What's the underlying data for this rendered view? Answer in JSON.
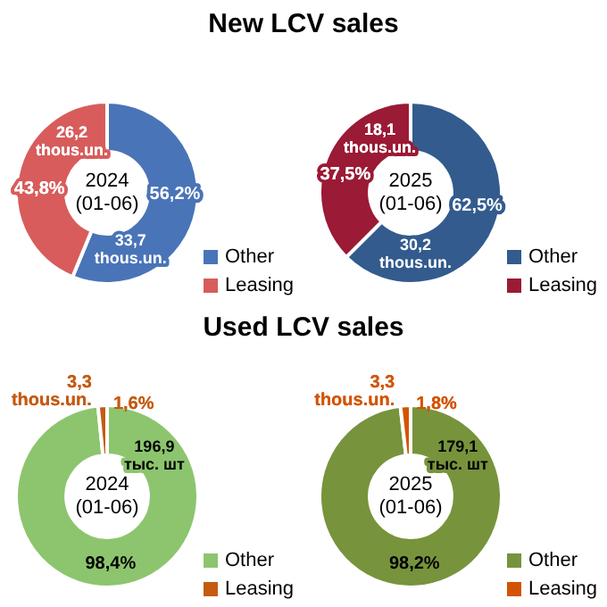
{
  "chart_data": [
    {
      "type": "donut",
      "title": "New LCV sales",
      "categories": [
        "Other",
        "Leasing"
      ],
      "values": [
        56.2,
        43.8
      ],
      "colors": [
        "#4a74b8",
        "#d85c5c"
      ],
      "value_labels": [
        "56,2%",
        "43,8%"
      ],
      "legend": "bottom right",
      "annotations": [
        "2024 (01-06)",
        {
          "text": "33,7 thous.un.",
          "x": "Other"
        },
        {
          "text": "26,2 thous.un.",
          "x": "Leasing"
        }
      ]
    },
    {
      "type": "donut",
      "categories": [
        "Other",
        "Leasing"
      ],
      "values": [
        62.5,
        37.5
      ],
      "colors": [
        "#335b8e",
        "#9b1a35"
      ],
      "value_labels": [
        "62,5%",
        "37,5%"
      ],
      "legend": "bottom right",
      "annotations": [
        "2025 (01-06)",
        {
          "text": "30,2 thous.un.",
          "x": "Other"
        },
        {
          "text": "18,1 thous.un.",
          "x": "Leasing"
        }
      ]
    },
    {
      "type": "donut",
      "title": "Used LCV sales",
      "categories": [
        "Other",
        "Leasing"
      ],
      "values": [
        98.4,
        1.6
      ],
      "colors": [
        "#8cc56e",
        "#c55a11"
      ],
      "value_labels": [
        "98,4%",
        "1,6%"
      ],
      "legend": "bottom right",
      "annotations": [
        "2024 (01-06)",
        {
          "text": "196,9 тыс. шт",
          "x": "Other"
        },
        {
          "text": "3,3 thous.un.",
          "x": "Leasing"
        }
      ]
    },
    {
      "type": "donut",
      "categories": [
        "Other",
        "Leasing"
      ],
      "values": [
        98.2,
        1.8
      ],
      "colors": [
        "#77933c",
        "#d35400"
      ],
      "value_labels": [
        "98,2%",
        "1,8%"
      ],
      "legend": "bottom right",
      "annotations": [
        "2025 (01-06)",
        {
          "text": "179,1 тыс. шт",
          "x": "Other"
        },
        {
          "text": "3,3 thous.un.",
          "x": "Leasing"
        }
      ]
    }
  ]
}
